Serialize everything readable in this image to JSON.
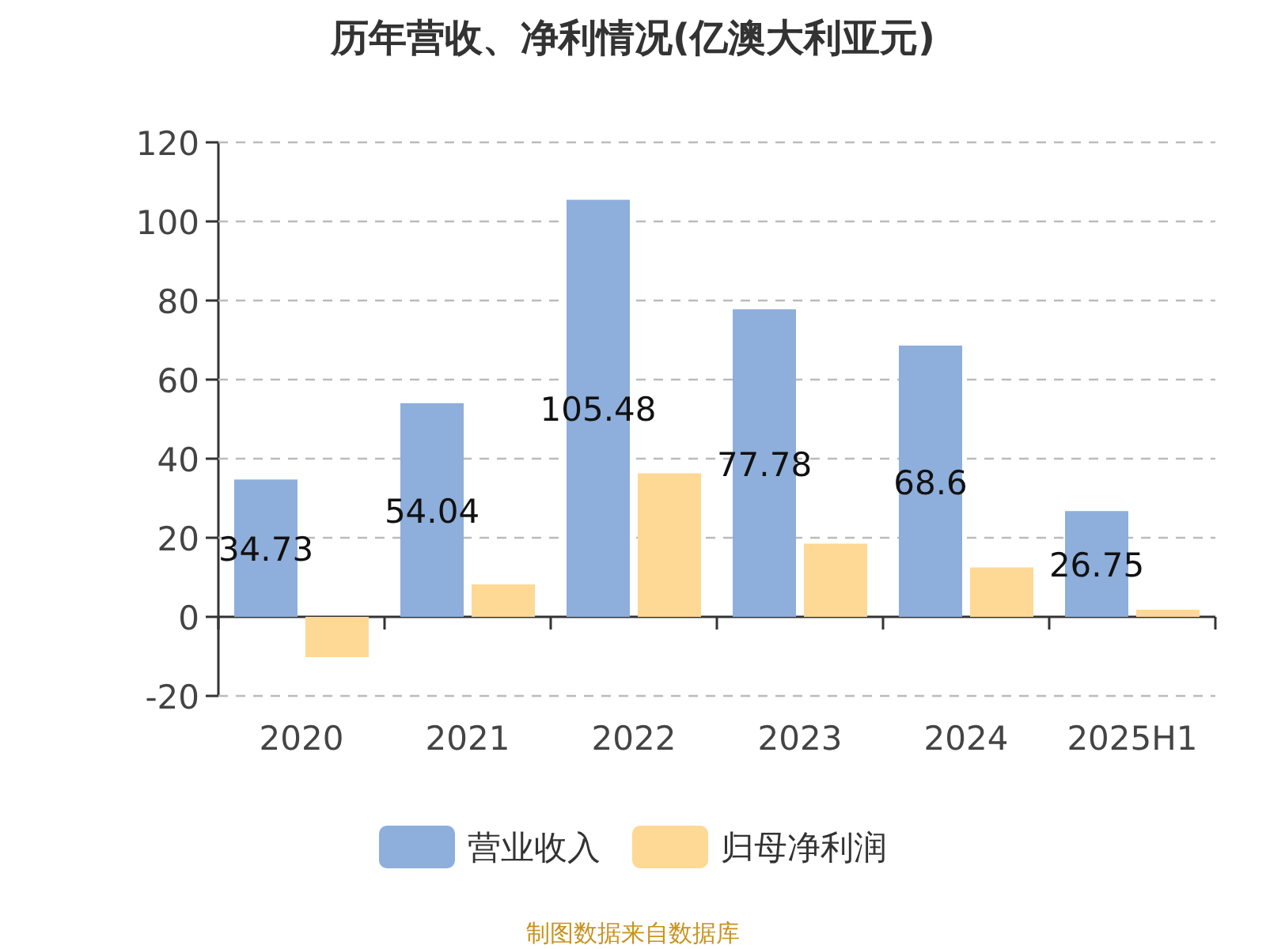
{
  "chart_data": {
    "type": "bar",
    "title": "历年营收、净利情况(亿澳大利亚元)",
    "categories": [
      "2020",
      "2021",
      "2022",
      "2023",
      "2024",
      "2025H1"
    ],
    "series": [
      {
        "name": "营业收入",
        "color": "#8eaedb",
        "values": [
          34.73,
          54.04,
          105.48,
          77.78,
          68.6,
          26.75
        ],
        "value_labels": [
          "34.73",
          "54.04",
          "105.48",
          "77.78",
          "68.6",
          "26.75"
        ]
      },
      {
        "name": "归母净利润",
        "color": "#fed895",
        "values": [
          -10.2,
          8.2,
          36.3,
          18.5,
          12.5,
          1.8
        ]
      }
    ],
    "ylim": [
      -20,
      120
    ],
    "yticks": [
      -20,
      0,
      20,
      40,
      60,
      80,
      100,
      120
    ],
    "grid": "y",
    "legend": "bottom",
    "annotations": [
      "制图数据来自数据库"
    ]
  }
}
